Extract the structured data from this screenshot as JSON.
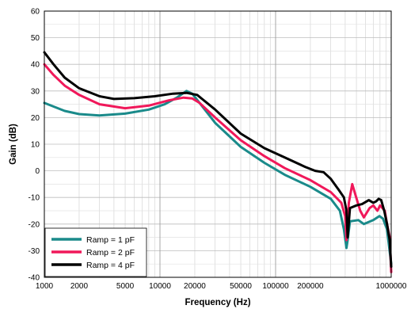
{
  "chart_data": {
    "type": "line",
    "title": "",
    "xlabel": "Frequency (Hz)",
    "ylabel": "Gain (dB)",
    "x_scale": "log",
    "xlim": [
      1000,
      1000000
    ],
    "ylim": [
      -40,
      60
    ],
    "grid": true,
    "legend_position": "bottom-left",
    "x_ticks": [
      1000,
      2000,
      5000,
      10000,
      20000,
      50000,
      100000,
      200000,
      1000000
    ],
    "x_tick_labels": [
      "1000",
      "2000",
      "5000",
      "10000",
      "20000",
      "50000",
      "100000",
      "200000",
      "1000000"
    ],
    "y_ticks": [
      -40,
      -30,
      -20,
      -10,
      0,
      10,
      20,
      30,
      40,
      50,
      60
    ],
    "y_tick_labels": [
      "-40",
      "-30",
      "-20",
      "-10",
      "0",
      "10",
      "20",
      "30",
      "40",
      "50",
      "60"
    ],
    "series": [
      {
        "name": "Ramp = 1 pF",
        "color": "#1a8a8a",
        "points": [
          [
            1000,
            25.5
          ],
          [
            1500,
            22.5
          ],
          [
            2000,
            21.3
          ],
          [
            3000,
            20.8
          ],
          [
            5000,
            21.5
          ],
          [
            8000,
            23
          ],
          [
            11000,
            25
          ],
          [
            14000,
            27.5
          ],
          [
            17000,
            30
          ],
          [
            19000,
            29
          ],
          [
            22000,
            25.5
          ],
          [
            30000,
            18
          ],
          [
            50000,
            9
          ],
          [
            80000,
            3
          ],
          [
            120000,
            -1.5
          ],
          [
            200000,
            -6
          ],
          [
            300000,
            -10.5
          ],
          [
            360000,
            -15
          ],
          [
            390000,
            -22
          ],
          [
            410000,
            -29
          ],
          [
            420000,
            -26
          ],
          [
            440000,
            -19
          ],
          [
            520000,
            -18.5
          ],
          [
            580000,
            -20
          ],
          [
            700000,
            -18.5
          ],
          [
            790000,
            -17
          ],
          [
            850000,
            -18
          ],
          [
            920000,
            -22
          ],
          [
            1000000,
            -35
          ]
        ]
      },
      {
        "name": "Ramp = 2 pF",
        "color": "#f0185a",
        "points": [
          [
            1000,
            40
          ],
          [
            1200,
            36
          ],
          [
            1500,
            32
          ],
          [
            2000,
            28.5
          ],
          [
            3000,
            25
          ],
          [
            5000,
            23.5
          ],
          [
            8000,
            24.5
          ],
          [
            12000,
            26.5
          ],
          [
            16000,
            27.5
          ],
          [
            19000,
            27.2
          ],
          [
            22000,
            25.5
          ],
          [
            30000,
            20
          ],
          [
            50000,
            11.5
          ],
          [
            80000,
            5.5
          ],
          [
            120000,
            1
          ],
          [
            200000,
            -3.5
          ],
          [
            300000,
            -8
          ],
          [
            370000,
            -12
          ],
          [
            400000,
            -17
          ],
          [
            410000,
            -26
          ],
          [
            430000,
            -12
          ],
          [
            460000,
            -5
          ],
          [
            490000,
            -9
          ],
          [
            540000,
            -15
          ],
          [
            580000,
            -17.5
          ],
          [
            650000,
            -14
          ],
          [
            700000,
            -13
          ],
          [
            760000,
            -15
          ],
          [
            800000,
            -13
          ],
          [
            840000,
            -14
          ],
          [
            880000,
            -15
          ],
          [
            920000,
            -20
          ],
          [
            970000,
            -25
          ],
          [
            1000000,
            -38
          ]
        ]
      },
      {
        "name": "Ramp = 4 pF",
        "color": "#000000",
        "points": [
          [
            1000,
            44.5
          ],
          [
            1200,
            40
          ],
          [
            1500,
            35
          ],
          [
            2000,
            31
          ],
          [
            3000,
            28
          ],
          [
            4000,
            27
          ],
          [
            6000,
            27.3
          ],
          [
            9000,
            28
          ],
          [
            13000,
            29
          ],
          [
            17000,
            29.3
          ],
          [
            21000,
            28.5
          ],
          [
            30000,
            23
          ],
          [
            50000,
            14
          ],
          [
            80000,
            8.5
          ],
          [
            120000,
            5
          ],
          [
            180000,
            1.5
          ],
          [
            220000,
            0
          ],
          [
            260000,
            -0.5
          ],
          [
            300000,
            -3
          ],
          [
            350000,
            -7
          ],
          [
            390000,
            -10
          ],
          [
            410000,
            -15
          ],
          [
            420000,
            -25
          ],
          [
            440000,
            -14
          ],
          [
            500000,
            -13
          ],
          [
            560000,
            -12.5
          ],
          [
            640000,
            -11
          ],
          [
            700000,
            -12
          ],
          [
            740000,
            -11.5
          ],
          [
            780000,
            -10.5
          ],
          [
            820000,
            -11
          ],
          [
            870000,
            -15
          ],
          [
            920000,
            -20
          ],
          [
            970000,
            -26
          ],
          [
            1000000,
            -36
          ]
        ]
      }
    ]
  }
}
